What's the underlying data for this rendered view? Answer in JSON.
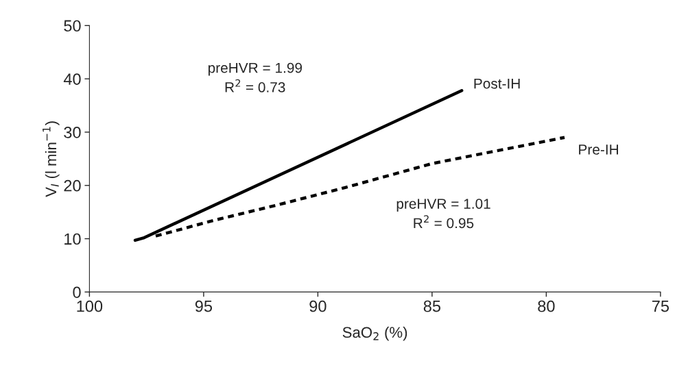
{
  "chart_data": {
    "type": "line",
    "xlabel": "SaO$_{2}$ (%)",
    "ylabel": "V$_{I}$ (l min$^{−1}$)",
    "xlim": [
      100,
      75
    ],
    "xticks": [
      100,
      95,
      90,
      85,
      80,
      75
    ],
    "ylim": [
      0,
      50
    ],
    "yticks": [
      0,
      10,
      20,
      30,
      40,
      50
    ],
    "grid": false,
    "legend": false,
    "series": [
      {
        "name": "Post-IH",
        "color": "#000000",
        "line_style": "solid",
        "x": [
          98.0,
          97.6,
          83.7
        ],
        "values": [
          9.7,
          10.2,
          37.8
        ]
      },
      {
        "name": "Pre-IH",
        "color": "#000000",
        "line_style": "dashed",
        "x": [
          97.1,
          94.5,
          91.8,
          88.8,
          85.0,
          79.2
        ],
        "values": [
          10.5,
          13.5,
          16.3,
          19.6,
          24.1,
          29.0
        ]
      }
    ],
    "annotations": [
      "preHVR = 1.99\nR$^{2}$ = 0.73",
      "preHVR = 1.01\nR$^{2}$ = 0.95"
    ]
  }
}
